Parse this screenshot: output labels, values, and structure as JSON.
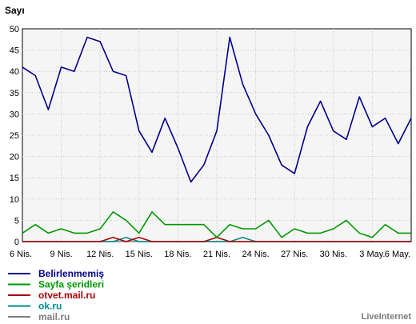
{
  "chart_data": {
    "type": "line",
    "ylabel": "Sayı",
    "ylim": [
      0,
      50
    ],
    "yticks": [
      0,
      5,
      10,
      15,
      20,
      25,
      30,
      35,
      40,
      45,
      50
    ],
    "grid": true,
    "legend_placement": "bottom-left",
    "x_tick_labels": [
      "6 Nis.",
      "9 Nis.",
      "12 Nis.",
      "15 Nis.",
      "18 Nis.",
      "21 Nis.",
      "24 Nis.",
      "27 Nis.",
      "30 Nis.",
      "3 May.",
      "6 May."
    ],
    "x_categories": [
      "6 Nis.",
      "7 Nis.",
      "8 Nis.",
      "9 Nis.",
      "10 Nis.",
      "11 Nis.",
      "12 Nis.",
      "13 Nis.",
      "14 Nis.",
      "15 Nis.",
      "16 Nis.",
      "17 Nis.",
      "18 Nis.",
      "19 Nis.",
      "20 Nis.",
      "21 Nis.",
      "22 Nis.",
      "23 Nis.",
      "24 Nis.",
      "25 Nis.",
      "26 Nis.",
      "27 Nis.",
      "28 Nis.",
      "29 Nis.",
      "30 Nis.",
      "1 May.",
      "2 May.",
      "3 May.",
      "4 May.",
      "5 May.",
      "6 May."
    ],
    "series": [
      {
        "name": "Belirlenmemiş",
        "color": "#00008b",
        "values": [
          41,
          39,
          31,
          41,
          40,
          48,
          47,
          40,
          39,
          26,
          21,
          29,
          22,
          14,
          18,
          26,
          48,
          37,
          30,
          25,
          18,
          16,
          27,
          33,
          26,
          24,
          34,
          27,
          29,
          23,
          29
        ]
      },
      {
        "name": "Sayfa şeridleri",
        "color": "#009900",
        "values": [
          2,
          4,
          2,
          3,
          2,
          2,
          3,
          7,
          5,
          2,
          7,
          4,
          4,
          4,
          4,
          1,
          4,
          3,
          3,
          5,
          1,
          3,
          2,
          2,
          3,
          5,
          2,
          1,
          4,
          2,
          2
        ]
      },
      {
        "name": "otvet.mail.ru",
        "color": "#aa0000",
        "values": [
          0,
          0,
          0,
          0,
          0,
          0,
          0,
          1,
          0,
          1,
          0,
          0,
          0,
          0,
          0,
          1,
          0,
          0,
          0,
          0,
          0,
          0,
          0,
          0,
          0,
          0,
          0,
          0,
          0,
          0,
          0
        ]
      },
      {
        "name": "ok.ru",
        "color": "#008b8b",
        "values": [
          0,
          0,
          0,
          0,
          0,
          0,
          0,
          0,
          1,
          0,
          0,
          0,
          0,
          0,
          0,
          0,
          0,
          1,
          0,
          0,
          0,
          0,
          0,
          0,
          0,
          0,
          0,
          0,
          0,
          0,
          0
        ]
      },
      {
        "name": "mail.ru",
        "color": "#808080",
        "values": [
          0,
          0,
          0,
          0,
          0,
          0,
          0,
          0,
          0,
          0,
          0,
          0,
          0,
          0,
          0,
          0,
          0,
          0,
          0,
          0,
          0,
          0,
          0,
          0,
          0,
          0,
          0,
          0,
          0,
          0,
          0
        ]
      }
    ]
  },
  "credit": "LiveInternet"
}
